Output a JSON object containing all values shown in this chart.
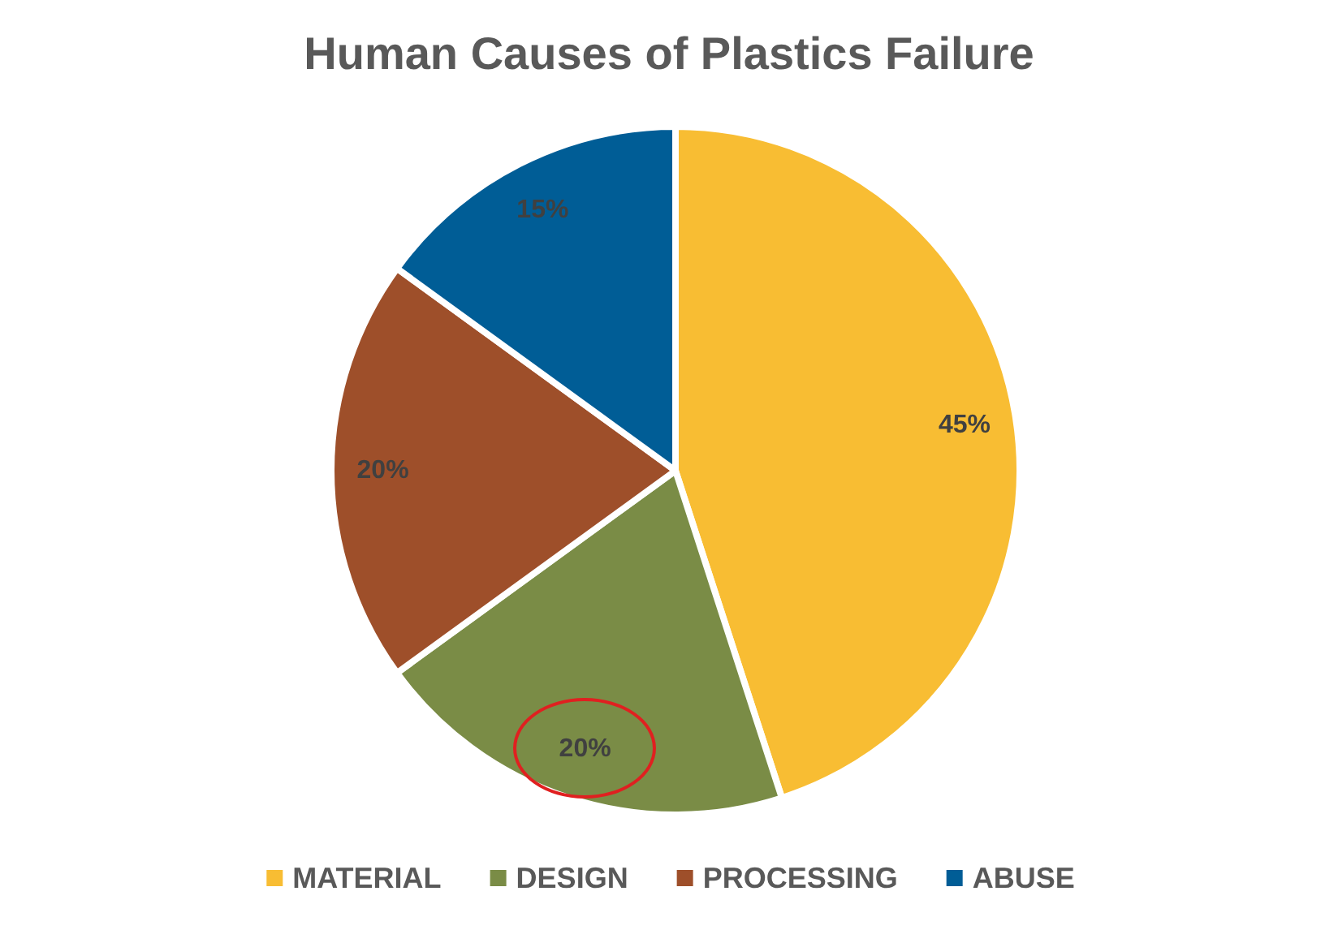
{
  "chart_data": {
    "type": "pie",
    "title": "Human Causes of Plastics Failure",
    "categories": [
      "MATERIAL",
      "DESIGN",
      "PROCESSING",
      "ABUSE"
    ],
    "values": [
      45,
      20,
      20,
      15
    ],
    "colors": [
      "#f8bd33",
      "#7a8c46",
      "#9e4f2a",
      "#005d96"
    ],
    "value_labels": [
      "45%",
      "20%",
      "20%",
      "15%"
    ],
    "legend": "bottom"
  }
}
